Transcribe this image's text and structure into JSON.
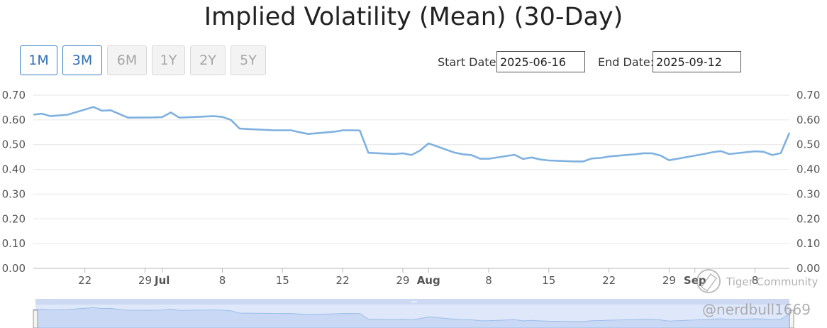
{
  "title": "Implied Volatility (Mean) (30-Day)",
  "range_buttons": [
    {
      "label": "1M",
      "active": true
    },
    {
      "label": "3M",
      "active": true
    },
    {
      "label": "6M",
      "active": false
    },
    {
      "label": "1Y",
      "active": false
    },
    {
      "label": "2Y",
      "active": false
    },
    {
      "label": "5Y",
      "active": false
    }
  ],
  "start_date": {
    "label": "Start Date:",
    "value": "2025-06-16"
  },
  "end_date": {
    "label": "End Date:",
    "value": "2025-09-12"
  },
  "watermark": {
    "brand": "Tiger Community",
    "handle": "@nerdbull1669"
  },
  "colors": {
    "line": "#7fb1e0",
    "grid": "#e6e6e6",
    "active_button": "#2f6fb5",
    "navigator_fill": "#dfe8fa"
  },
  "chart_data": {
    "type": "line",
    "title": "Implied Volatility (Mean) (30-Day)",
    "xlabel": "",
    "ylabel": "",
    "xlim": [
      "2025-06-16",
      "2025-09-12"
    ],
    "ylim": [
      0,
      0.7
    ],
    "y_ticks": [
      "0.00",
      "0.10",
      "0.20",
      "0.30",
      "0.40",
      "0.50",
      "0.60",
      "0.70"
    ],
    "x_ticks": [
      {
        "date": "2025-06-22",
        "label": "22",
        "bold": false
      },
      {
        "date": "2025-06-29",
        "label": "29",
        "bold": false
      },
      {
        "date": "2025-07-01",
        "label": "Jul",
        "bold": true
      },
      {
        "date": "2025-07-08",
        "label": "8",
        "bold": false
      },
      {
        "date": "2025-07-15",
        "label": "15",
        "bold": false
      },
      {
        "date": "2025-07-22",
        "label": "22",
        "bold": false
      },
      {
        "date": "2025-07-29",
        "label": "29",
        "bold": false
      },
      {
        "date": "2025-08-01",
        "label": "Aug",
        "bold": true
      },
      {
        "date": "2025-08-08",
        "label": "8",
        "bold": false
      },
      {
        "date": "2025-08-15",
        "label": "15",
        "bold": false
      },
      {
        "date": "2025-08-22",
        "label": "22",
        "bold": false
      },
      {
        "date": "2025-08-29",
        "label": "29",
        "bold": false
      },
      {
        "date": "2025-09-01",
        "label": "Sep",
        "bold": true
      },
      {
        "date": "2025-09-08",
        "label": "8",
        "bold": false
      }
    ],
    "grid": true,
    "dual_y_axis": true,
    "series": [
      {
        "x": [
          "2025-06-16",
          "2025-06-17",
          "2025-06-18",
          "2025-06-19",
          "2025-06-20",
          "2025-06-23",
          "2025-06-24",
          "2025-06-25",
          "2025-06-26",
          "2025-06-27",
          "2025-06-30",
          "2025-07-01",
          "2025-07-02",
          "2025-07-03",
          "2025-07-07",
          "2025-07-08",
          "2025-07-09",
          "2025-07-10",
          "2025-07-11",
          "2025-07-14",
          "2025-07-15",
          "2025-07-16",
          "2025-07-17",
          "2025-07-18",
          "2025-07-21",
          "2025-07-22",
          "2025-07-23",
          "2025-07-24",
          "2025-07-25",
          "2025-07-28",
          "2025-07-29",
          "2025-07-30",
          "2025-07-31",
          "2025-08-01",
          "2025-08-04",
          "2025-08-05",
          "2025-08-06",
          "2025-08-07",
          "2025-08-08",
          "2025-08-11",
          "2025-08-12",
          "2025-08-13",
          "2025-08-14",
          "2025-08-15",
          "2025-08-18",
          "2025-08-19",
          "2025-08-20",
          "2025-08-21",
          "2025-08-22",
          "2025-08-25",
          "2025-08-26",
          "2025-08-27",
          "2025-08-28",
          "2025-08-29",
          "2025-09-02",
          "2025-09-03",
          "2025-09-04",
          "2025-09-05",
          "2025-09-08",
          "2025-09-09",
          "2025-09-10",
          "2025-09-11",
          "2025-09-12"
        ],
        "values": [
          0.621,
          0.625,
          0.615,
          0.618,
          0.621,
          0.652,
          0.637,
          0.639,
          0.624,
          0.609,
          0.61,
          0.611,
          0.63,
          0.609,
          0.615,
          0.612,
          0.6,
          0.565,
          0.563,
          0.558,
          0.558,
          0.558,
          0.55,
          0.543,
          0.552,
          0.558,
          0.558,
          0.557,
          0.467,
          0.462,
          0.465,
          0.458,
          0.476,
          0.505,
          0.468,
          0.461,
          0.458,
          0.443,
          0.443,
          0.459,
          0.442,
          0.448,
          0.44,
          0.436,
          0.432,
          0.432,
          0.444,
          0.446,
          0.452,
          0.461,
          0.465,
          0.465,
          0.456,
          0.437,
          0.462,
          0.469,
          0.474,
          0.462,
          0.473,
          0.471,
          0.458,
          0.466,
          0.548
        ]
      }
    ]
  }
}
